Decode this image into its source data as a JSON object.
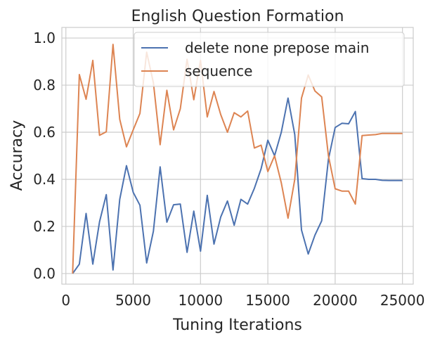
{
  "chart_data": {
    "type": "line",
    "title": "English Question Formation",
    "xlabel": "Tuning Iterations",
    "ylabel": "Accuracy",
    "xlim": [
      -300,
      25800
    ],
    "ylim": [
      -0.045,
      1.045
    ],
    "xticks": [
      0,
      5000,
      10000,
      15000,
      20000,
      25000
    ],
    "yticks": [
      0.0,
      0.2,
      0.4,
      0.6,
      0.8,
      1.0
    ],
    "xtick_labels": [
      "0",
      "5000",
      "10000",
      "15000",
      "20000",
      "25000"
    ],
    "ytick_labels": [
      "0.0",
      "0.2",
      "0.4",
      "0.6",
      "0.8",
      "1.0"
    ],
    "grid": true,
    "legend_position": "top-right",
    "series": [
      {
        "name": "delete none prepose main",
        "color": "#4c72b0",
        "x": [
          500,
          1000,
          1500,
          2000,
          2500,
          3000,
          3500,
          4000,
          4500,
          5000,
          5500,
          6000,
          6500,
          7000,
          7500,
          8000,
          8500,
          9000,
          9500,
          10000,
          10500,
          11000,
          11500,
          12000,
          12500,
          13000,
          13500,
          14000,
          14500,
          15000,
          15500,
          16000,
          16500,
          17000,
          17500,
          18000,
          18500,
          19000,
          19500,
          20000,
          20500,
          21000,
          21500,
          22000,
          22500,
          23000,
          23500,
          24000,
          24500,
          25000
        ],
        "y": [
          0.0,
          0.04,
          0.255,
          0.04,
          0.22,
          0.335,
          0.015,
          0.315,
          0.458,
          0.345,
          0.29,
          0.045,
          0.18,
          0.453,
          0.218,
          0.292,
          0.295,
          0.09,
          0.265,
          0.095,
          0.332,
          0.125,
          0.24,
          0.308,
          0.205,
          0.315,
          0.295,
          0.362,
          0.445,
          0.566,
          0.5,
          0.6,
          0.745,
          0.59,
          0.185,
          0.083,
          0.163,
          0.224,
          0.485,
          0.62,
          0.638,
          0.636,
          0.688,
          0.403,
          0.4,
          0.4,
          0.396,
          0.395,
          0.395,
          0.395
        ]
      },
      {
        "name": "sequence",
        "color": "#dd8452",
        "x": [
          500,
          1000,
          1500,
          2000,
          2500,
          3000,
          3500,
          4000,
          4500,
          5000,
          5500,
          6000,
          6500,
          7000,
          7500,
          8000,
          8500,
          9000,
          9500,
          10000,
          10500,
          11000,
          11500,
          12000,
          12500,
          13000,
          13500,
          14000,
          14500,
          15000,
          15500,
          16000,
          16500,
          17000,
          17500,
          18000,
          18500,
          19000,
          19500,
          20000,
          20500,
          21000,
          21500,
          22000,
          22500,
          23000,
          23500,
          24000,
          24500,
          25000
        ],
        "y": [
          0.0,
          0.845,
          0.74,
          0.905,
          0.587,
          0.602,
          0.973,
          0.655,
          0.538,
          0.61,
          0.68,
          0.94,
          0.81,
          0.547,
          0.778,
          0.61,
          0.7,
          0.91,
          0.738,
          0.905,
          0.665,
          0.773,
          0.675,
          0.6,
          0.683,
          0.665,
          0.69,
          0.533,
          0.545,
          0.433,
          0.5,
          0.385,
          0.235,
          0.4,
          0.745,
          0.843,
          0.775,
          0.75,
          0.5,
          0.36,
          0.35,
          0.35,
          0.295,
          0.586,
          0.588,
          0.59,
          0.595,
          0.595,
          0.595,
          0.595
        ]
      }
    ]
  }
}
